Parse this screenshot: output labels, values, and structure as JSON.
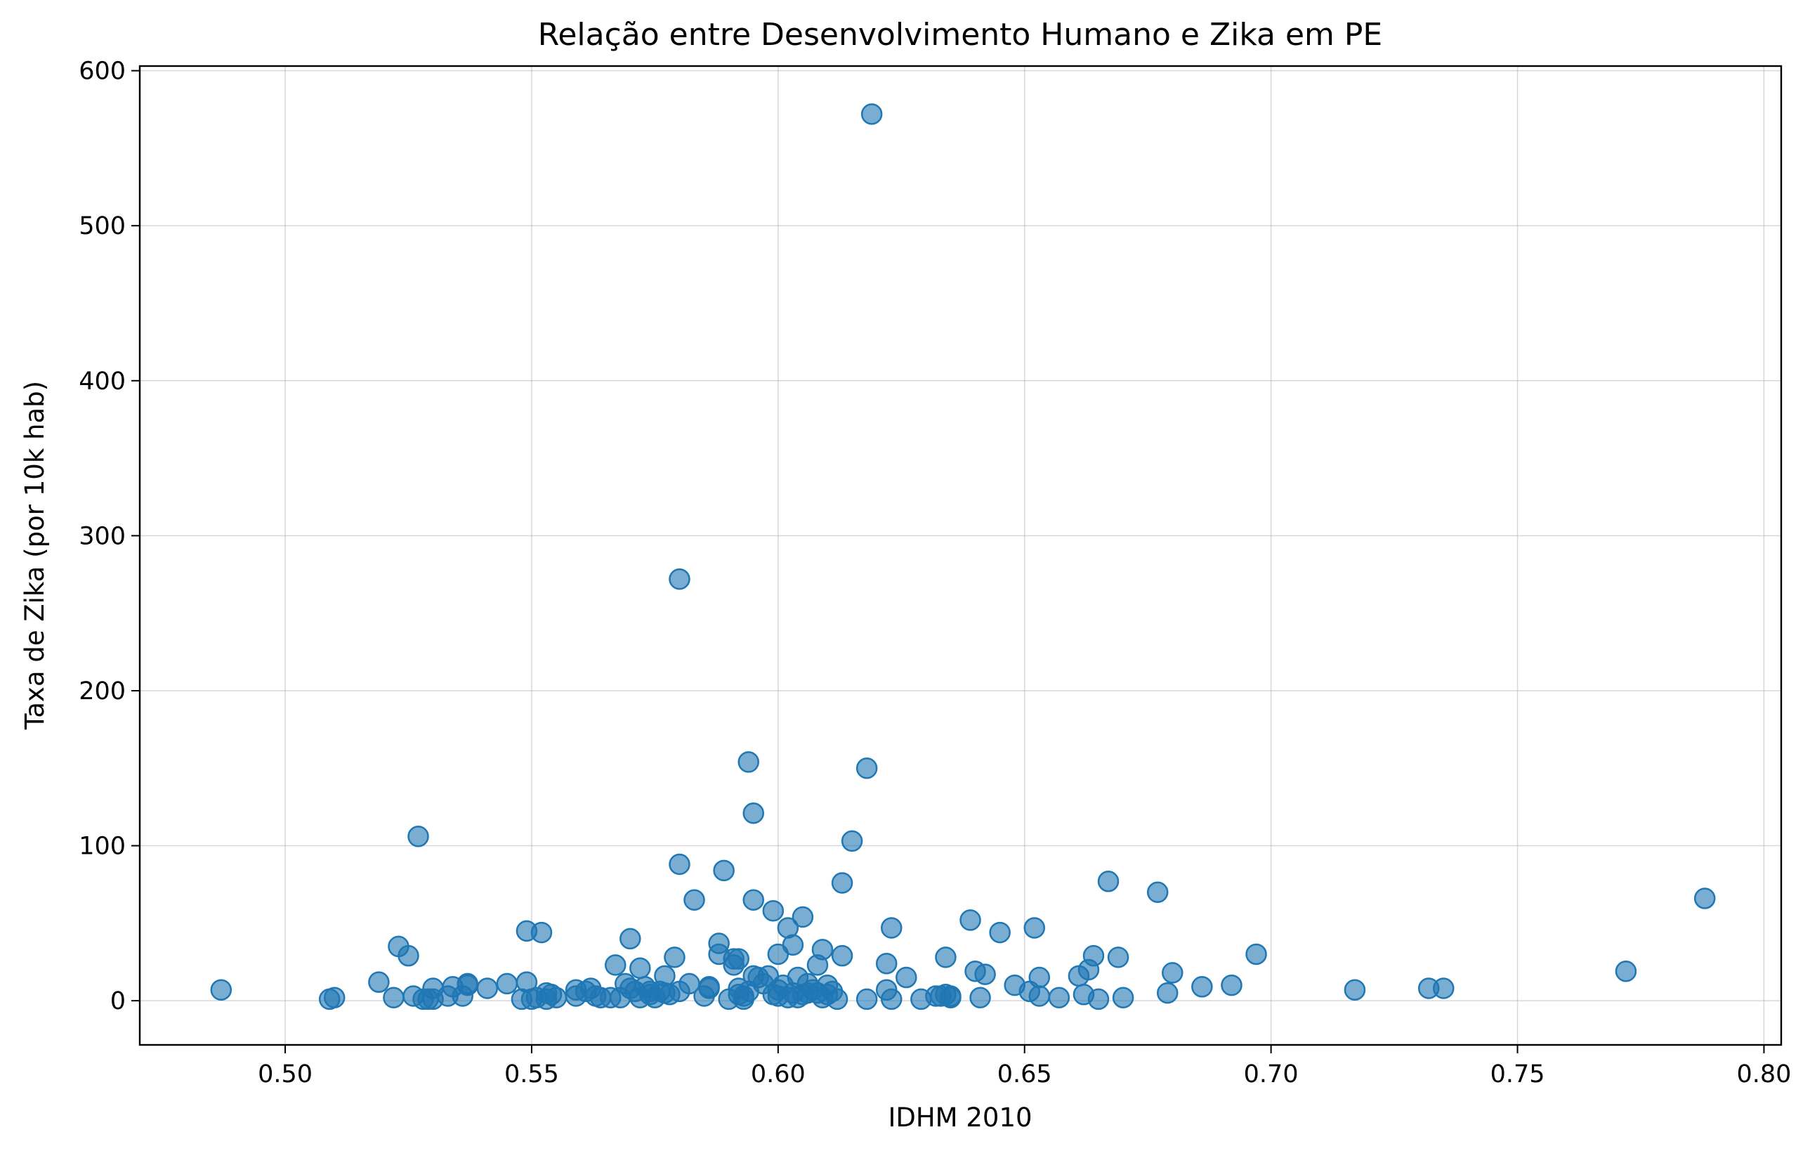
{
  "chart_data": {
    "type": "scatter",
    "title": "Relação entre Desenvolvimento Humano e Zika em PE",
    "xlabel": "IDHM 2010",
    "ylabel": "Taxa de Zika (por 10k hab)",
    "xlim": [
      0.4705,
      0.8035
    ],
    "ylim": [
      -28.5,
      603
    ],
    "xticks": [
      0.5,
      0.55,
      0.6,
      0.65,
      0.7,
      0.75,
      0.8
    ],
    "xtick_labels": [
      "0.50",
      "0.55",
      "0.60",
      "0.65",
      "0.70",
      "0.75",
      "0.80"
    ],
    "yticks": [
      0,
      100,
      200,
      300,
      400,
      500,
      600
    ],
    "ytick_labels": [
      "0",
      "100",
      "200",
      "300",
      "400",
      "500",
      "600"
    ],
    "grid": true,
    "color": "#1f77b4",
    "points": [
      [
        0.487,
        7
      ],
      [
        0.509,
        1
      ],
      [
        0.51,
        2
      ],
      [
        0.519,
        12
      ],
      [
        0.522,
        2
      ],
      [
        0.523,
        35
      ],
      [
        0.525,
        29
      ],
      [
        0.526,
        3
      ],
      [
        0.527,
        106
      ],
      [
        0.528,
        1
      ],
      [
        0.529,
        1
      ],
      [
        0.53,
        8
      ],
      [
        0.53,
        1
      ],
      [
        0.533,
        3
      ],
      [
        0.534,
        9
      ],
      [
        0.536,
        3
      ],
      [
        0.537,
        11
      ],
      [
        0.537,
        10
      ],
      [
        0.541,
        8
      ],
      [
        0.545,
        11
      ],
      [
        0.548,
        1
      ],
      [
        0.549,
        12
      ],
      [
        0.549,
        45
      ],
      [
        0.55,
        1
      ],
      [
        0.551,
        2
      ],
      [
        0.552,
        44
      ],
      [
        0.553,
        5
      ],
      [
        0.553,
        1
      ],
      [
        0.554,
        4
      ],
      [
        0.555,
        2
      ],
      [
        0.559,
        7
      ],
      [
        0.559,
        3
      ],
      [
        0.561,
        6
      ],
      [
        0.562,
        8
      ],
      [
        0.563,
        3
      ],
      [
        0.564,
        2
      ],
      [
        0.566,
        2
      ],
      [
        0.567,
        23
      ],
      [
        0.568,
        2
      ],
      [
        0.569,
        11
      ],
      [
        0.57,
        40
      ],
      [
        0.57,
        8
      ],
      [
        0.571,
        6
      ],
      [
        0.572,
        21
      ],
      [
        0.572,
        2
      ],
      [
        0.573,
        9
      ],
      [
        0.574,
        4
      ],
      [
        0.574,
        6
      ],
      [
        0.575,
        2
      ],
      [
        0.576,
        6
      ],
      [
        0.577,
        16
      ],
      [
        0.577,
        5
      ],
      [
        0.578,
        4
      ],
      [
        0.579,
        28
      ],
      [
        0.58,
        272
      ],
      [
        0.58,
        88
      ],
      [
        0.58,
        6
      ],
      [
        0.582,
        11
      ],
      [
        0.583,
        65
      ],
      [
        0.585,
        3
      ],
      [
        0.586,
        8
      ],
      [
        0.586,
        9
      ],
      [
        0.588,
        37
      ],
      [
        0.588,
        30
      ],
      [
        0.589,
        84
      ],
      [
        0.59,
        1
      ],
      [
        0.591,
        27
      ],
      [
        0.591,
        23
      ],
      [
        0.592,
        27
      ],
      [
        0.592,
        4
      ],
      [
        0.592,
        8
      ],
      [
        0.593,
        3
      ],
      [
        0.593,
        1
      ],
      [
        0.594,
        154
      ],
      [
        0.594,
        6
      ],
      [
        0.595,
        121
      ],
      [
        0.595,
        65
      ],
      [
        0.595,
        16
      ],
      [
        0.596,
        15
      ],
      [
        0.597,
        11
      ],
      [
        0.598,
        16
      ],
      [
        0.599,
        58
      ],
      [
        0.599,
        4
      ],
      [
        0.6,
        30
      ],
      [
        0.6,
        7
      ],
      [
        0.6,
        3
      ],
      [
        0.601,
        10
      ],
      [
        0.602,
        47
      ],
      [
        0.602,
        2
      ],
      [
        0.603,
        36
      ],
      [
        0.603,
        5
      ],
      [
        0.604,
        15
      ],
      [
        0.604,
        2
      ],
      [
        0.605,
        54
      ],
      [
        0.605,
        4
      ],
      [
        0.606,
        11
      ],
      [
        0.606,
        5
      ],
      [
        0.607,
        7
      ],
      [
        0.608,
        23
      ],
      [
        0.608,
        5
      ],
      [
        0.609,
        33
      ],
      [
        0.609,
        2
      ],
      [
        0.61,
        10
      ],
      [
        0.61,
        4
      ],
      [
        0.611,
        6
      ],
      [
        0.612,
        1
      ],
      [
        0.613,
        76
      ],
      [
        0.613,
        29
      ],
      [
        0.615,
        103
      ],
      [
        0.618,
        150
      ],
      [
        0.618,
        1
      ],
      [
        0.619,
        572
      ],
      [
        0.622,
        24
      ],
      [
        0.622,
        7
      ],
      [
        0.623,
        47
      ],
      [
        0.623,
        1
      ],
      [
        0.626,
        15
      ],
      [
        0.629,
        1
      ],
      [
        0.632,
        3
      ],
      [
        0.633,
        3
      ],
      [
        0.634,
        28
      ],
      [
        0.634,
        4
      ],
      [
        0.635,
        2
      ],
      [
        0.635,
        3
      ],
      [
        0.639,
        52
      ],
      [
        0.64,
        19
      ],
      [
        0.641,
        2
      ],
      [
        0.642,
        17
      ],
      [
        0.645,
        44
      ],
      [
        0.648,
        10
      ],
      [
        0.651,
        6
      ],
      [
        0.652,
        47
      ],
      [
        0.653,
        15
      ],
      [
        0.653,
        3
      ],
      [
        0.657,
        2
      ],
      [
        0.661,
        16
      ],
      [
        0.662,
        4
      ],
      [
        0.663,
        20
      ],
      [
        0.664,
        29
      ],
      [
        0.665,
        1
      ],
      [
        0.667,
        77
      ],
      [
        0.669,
        28
      ],
      [
        0.67,
        2
      ],
      [
        0.677,
        70
      ],
      [
        0.679,
        5
      ],
      [
        0.68,
        18
      ],
      [
        0.686,
        9
      ],
      [
        0.692,
        10
      ],
      [
        0.697,
        30
      ],
      [
        0.717,
        7
      ],
      [
        0.732,
        8
      ],
      [
        0.735,
        8
      ],
      [
        0.772,
        19
      ],
      [
        0.788,
        66
      ]
    ]
  }
}
